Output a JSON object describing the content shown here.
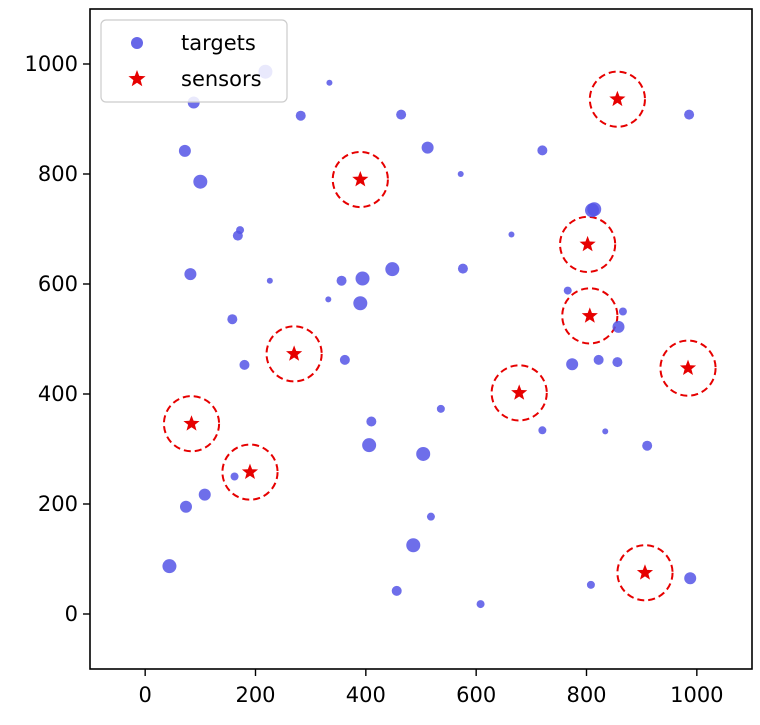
{
  "chart_data": {
    "type": "scatter",
    "title": "",
    "xlabel": "",
    "ylabel": "",
    "xlim": [
      -100,
      1100
    ],
    "ylim": [
      -100,
      1100
    ],
    "grid": false,
    "legend_placement": "top-left",
    "x_ticks": [
      0,
      200,
      400,
      600,
      800,
      1000
    ],
    "y_ticks": [
      0,
      200,
      400,
      600,
      800,
      1000
    ],
    "x_tick_labels": [
      "0",
      "200",
      "400",
      "600",
      "800",
      "1000"
    ],
    "y_tick_labels": [
      "0",
      "200",
      "400",
      "600",
      "800",
      "1000"
    ],
    "legend": [
      "targets",
      "sensors"
    ],
    "colors": {
      "targets": "#5555e6",
      "sensors": "#e60000",
      "sensing_range": "#e60000"
    },
    "sensing_radius": 50,
    "series": [
      {
        "name": "targets",
        "marker": "circle",
        "x": [
          218,
          334,
          88,
          282,
          464,
          72,
          100,
          512,
          572,
          720,
          814,
          986,
          168,
          172,
          664,
          810,
          82,
          576,
          226,
          448,
          356,
          394,
          332,
          390,
          766,
          866,
          158,
          858,
          180,
          362,
          774,
          822,
          856,
          536,
          410,
          720,
          834,
          406,
          504,
          910,
          162,
          108,
          74,
          518,
          486,
          44,
          808,
          988,
          456,
          608
        ],
        "y": [
          986,
          966,
          930,
          906,
          908,
          842,
          786,
          848,
          800,
          843,
          736,
          908,
          688,
          698,
          690,
          734,
          618,
          628,
          606,
          627,
          606,
          610,
          572,
          565,
          588,
          550,
          536,
          522,
          453,
          462,
          454,
          462,
          458,
          373,
          350,
          334,
          332,
          307,
          291,
          306,
          250,
          217,
          195,
          177,
          125,
          87,
          53,
          65,
          42,
          18
        ],
        "sizes": [
          7,
          3,
          6,
          5,
          5,
          6,
          7,
          6,
          3,
          5,
          7,
          5,
          5,
          4,
          3,
          7,
          6,
          5,
          3,
          7,
          5,
          7,
          3,
          7,
          4,
          4,
          5,
          6,
          5,
          5,
          6,
          5,
          5,
          4,
          5,
          4,
          3,
          7,
          7,
          5,
          4,
          6,
          6,
          4,
          7,
          7,
          4,
          6,
          5,
          4
        ]
      },
      {
        "name": "sensors",
        "marker": "star",
        "x": [
          856,
          390,
          802,
          806,
          270,
          984,
          678,
          84,
          190,
          906
        ],
        "y": [
          936,
          790,
          672,
          542,
          473,
          447,
          402,
          346,
          258,
          75
        ]
      }
    ]
  }
}
